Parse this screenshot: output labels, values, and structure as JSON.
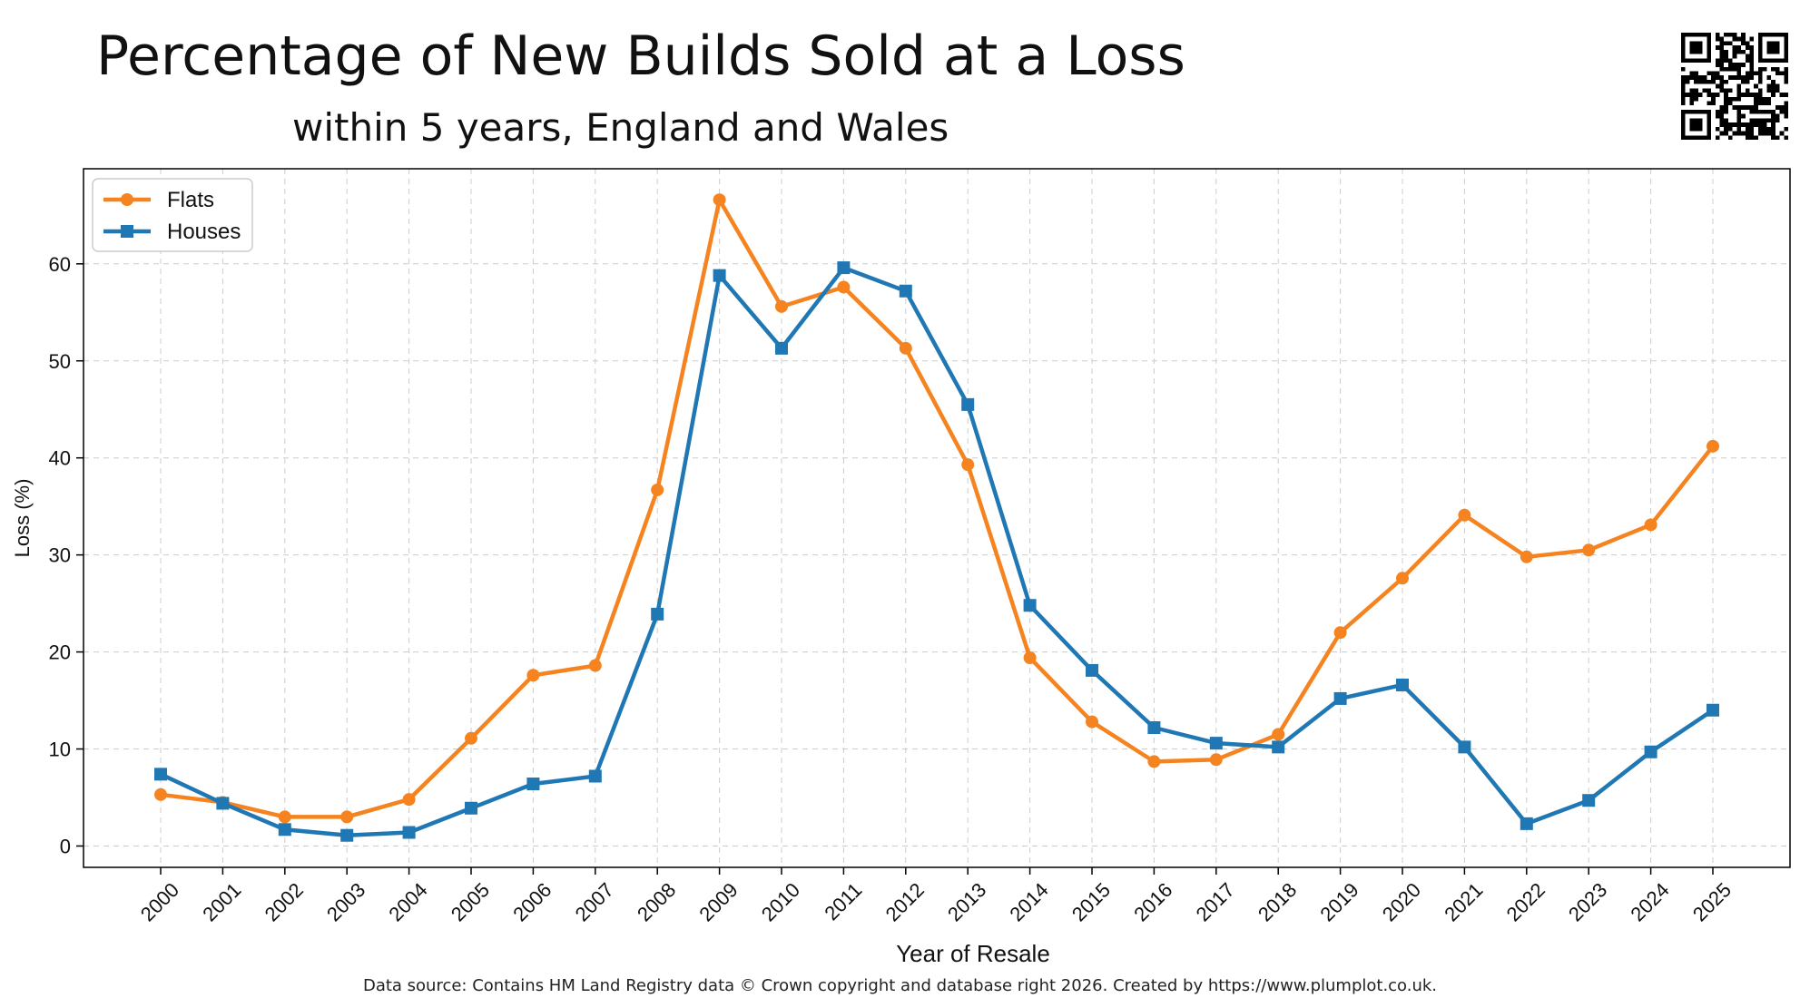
{
  "header": {
    "title": "Percentage of New Builds Sold at a Loss",
    "subtitle": "within 5 years, England and Wales"
  },
  "footer": {
    "source": "Data source: Contains HM Land Registry data © Crown copyright and database right 2026. Created by https://www.plumplot.co.uk."
  },
  "chart_data": {
    "type": "line",
    "title": "Percentage of New Builds Sold at a Loss",
    "subtitle": "within 5 years, England and Wales",
    "xlabel": "Year of Resale",
    "ylabel": "Loss (%)",
    "x": [
      "2000",
      "2001",
      "2002",
      "2003",
      "2004",
      "2005",
      "2006",
      "2007",
      "2008",
      "2009",
      "2010",
      "2011",
      "2012",
      "2013",
      "2014",
      "2015",
      "2016",
      "2017",
      "2018",
      "2019",
      "2020",
      "2021",
      "2022",
      "2023",
      "2024",
      "2025"
    ],
    "ylim": [
      -2.2,
      69.8
    ],
    "yticks": [
      0,
      10,
      20,
      30,
      40,
      50,
      60
    ],
    "grid": true,
    "legend_position": "top-left",
    "series": [
      {
        "name": "Flats",
        "color": "#f5831f",
        "marker": "circle",
        "values": [
          5.3,
          4.5,
          3.0,
          3.0,
          4.8,
          11.1,
          17.6,
          18.6,
          36.7,
          66.6,
          55.6,
          57.6,
          51.3,
          39.3,
          19.4,
          12.8,
          8.7,
          8.9,
          11.5,
          22.0,
          27.6,
          34.1,
          29.8,
          30.5,
          33.1,
          41.2
        ]
      },
      {
        "name": "Houses",
        "color": "#1f77b4",
        "marker": "square",
        "values": [
          7.4,
          4.4,
          1.7,
          1.1,
          1.4,
          3.9,
          6.4,
          7.2,
          23.9,
          58.8,
          51.3,
          59.6,
          57.2,
          45.5,
          24.8,
          18.1,
          12.2,
          10.6,
          10.2,
          15.2,
          16.6,
          10.2,
          2.3,
          4.7,
          9.7,
          14.0
        ]
      }
    ]
  }
}
